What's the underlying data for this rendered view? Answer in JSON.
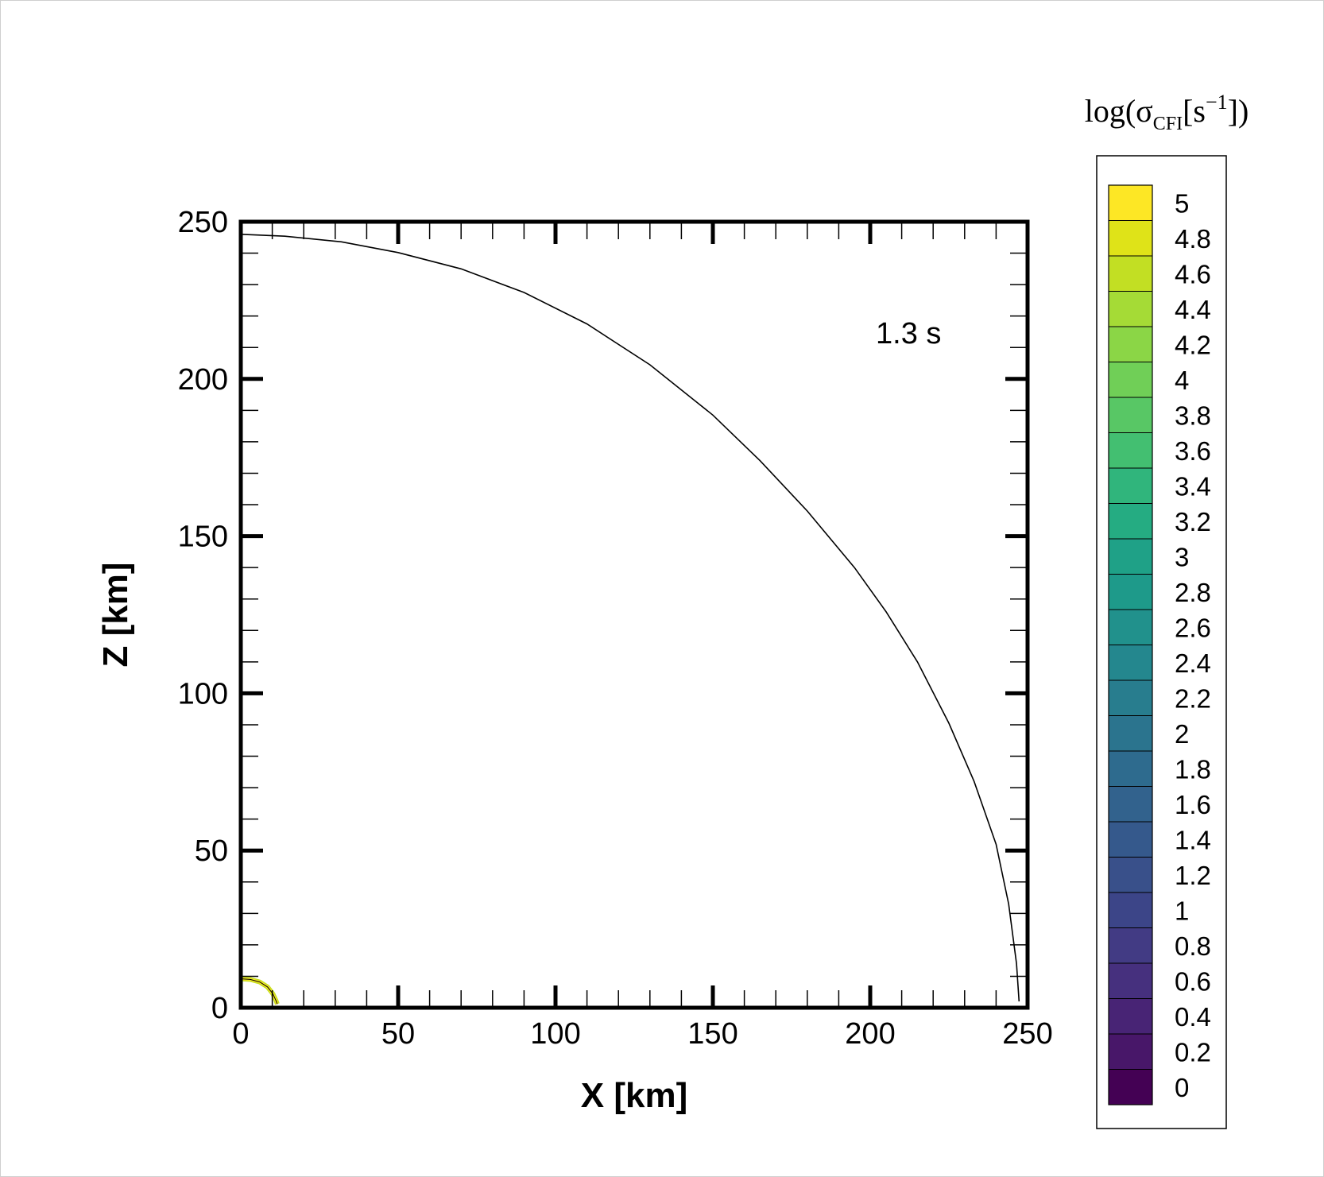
{
  "chart_data": {
    "type": "contour",
    "xlabel": "X [km]",
    "ylabel": "Z [km]",
    "xlim": [
      0,
      250
    ],
    "ylim": [
      0,
      250
    ],
    "xticks": [
      0,
      50,
      100,
      150,
      200,
      250
    ],
    "yticks": [
      0,
      50,
      100,
      150,
      200,
      250
    ],
    "x_minor_step": 10,
    "y_minor_step": 10,
    "annotation": "1.3 s",
    "boundary_curve": {
      "color": "#000000",
      "points": [
        [
          0,
          246.0
        ],
        [
          14,
          245.4
        ],
        [
          32,
          243.6
        ],
        [
          50,
          240.2
        ],
        [
          70,
          235.0
        ],
        [
          90,
          227.5
        ],
        [
          110,
          217.5
        ],
        [
          130,
          204.5
        ],
        [
          150,
          188.5
        ],
        [
          165,
          174.0
        ],
        [
          180,
          158.0
        ],
        [
          195,
          140.0
        ],
        [
          205,
          126.0
        ],
        [
          215,
          110.0
        ],
        [
          225,
          90.5
        ],
        [
          233,
          72.0
        ],
        [
          240,
          52.0
        ],
        [
          244,
          33.0
        ],
        [
          246.5,
          14.0
        ],
        [
          247.3,
          2.0
        ]
      ]
    },
    "inner_contour": {
      "colors": [
        "#c8e020",
        "#fde725",
        "#000000"
      ],
      "points": [
        [
          0,
          9.2
        ],
        [
          3,
          9.0
        ],
        [
          6,
          8.2
        ],
        [
          8.5,
          6.6
        ],
        [
          10.2,
          4.4
        ],
        [
          11.2,
          2.2
        ],
        [
          11.6,
          1.2
        ]
      ]
    },
    "colorbar": {
      "title_base": "log(σ",
      "title_sub": "CFI",
      "title_unit": "[s",
      "title_exp": "−1",
      "title_end": "])",
      "ticks": [
        "5",
        "4.8",
        "4.6",
        "4.4",
        "4.2",
        "4",
        "3.8",
        "3.6",
        "3.4",
        "3.2",
        "3",
        "2.8",
        "2.6",
        "2.4",
        "2.2",
        "2",
        "1.8",
        "1.6",
        "1.4",
        "1.2",
        "1",
        "0.8",
        "0.6",
        "0.4",
        "0.2",
        "0"
      ],
      "colors_top_to_bottom": [
        "#fde725",
        "#dfe318",
        "#c2df23",
        "#a5db36",
        "#8bd646",
        "#70cf57",
        "#58c765",
        "#43bf71",
        "#30b57c",
        "#25ac82",
        "#1fa187",
        "#1e9a8a",
        "#21918c",
        "#24878e",
        "#287d8e",
        "#2b748e",
        "#2e6b8e",
        "#32628d",
        "#35598c",
        "#39508a",
        "#3c4588",
        "#423b84",
        "#46307e",
        "#482475",
        "#481769",
        "#440154"
      ]
    }
  }
}
